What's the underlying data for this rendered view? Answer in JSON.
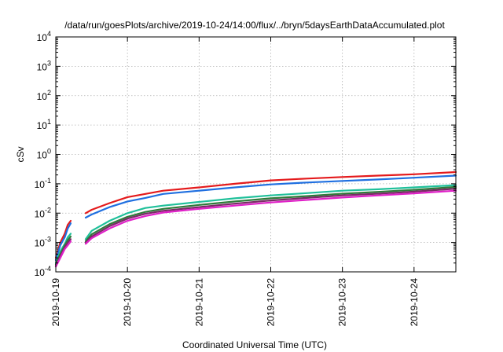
{
  "chart_data": {
    "type": "line",
    "title": "/data/run/goesPlots/archive/2019-10-24/14:00/flux/../bryn/5daysEarthDataAccumulated.plot",
    "xlabel": "Coordinated Universal Time (UTC)",
    "ylabel": "cSv",
    "y_scale": "log",
    "ylim": [
      0.0001,
      10000
    ],
    "y_ticks": [
      {
        "value": 0.0001,
        "mantissa": "10",
        "exp": "-4"
      },
      {
        "value": 0.001,
        "mantissa": "10",
        "exp": "-3"
      },
      {
        "value": 0.01,
        "mantissa": "10",
        "exp": "-2"
      },
      {
        "value": 0.1,
        "mantissa": "10",
        "exp": "-1"
      },
      {
        "value": 1,
        "mantissa": "10",
        "exp": "0"
      },
      {
        "value": 10,
        "mantissa": "10",
        "exp": "1"
      },
      {
        "value": 100,
        "mantissa": "10",
        "exp": "2"
      },
      {
        "value": 1000,
        "mantissa": "10",
        "exp": "3"
      },
      {
        "value": 10000,
        "mantissa": "10",
        "exp": "4"
      }
    ],
    "xlim": [
      "2019-10-19",
      "2019-10-24T14:00"
    ],
    "x_ticks": [
      "2019-10-19",
      "2019-10-20",
      "2019-10-21",
      "2019-10-22",
      "2019-10-23",
      "2019-10-24"
    ],
    "grid": true,
    "legend": "none",
    "series_colors": [
      "#e41a1c",
      "#1f6fe0",
      "#1fc09a",
      "#2f7a3a",
      "#7a2a66",
      "#e020c8"
    ],
    "series": [
      {
        "color": "#e41a1c",
        "x": [
          "2019-10-19T00:00",
          "2019-10-19T01:30",
          "2019-10-19T03:00",
          "2019-10-19T04:00",
          "2019-10-19T05:00",
          "2019-10-19T10:00",
          "2019-10-19T12:00",
          "2019-10-19T18:00",
          "2019-10-20T00:00",
          "2019-10-20T06:00",
          "2019-10-20T12:00",
          "2019-10-21T00:00",
          "2019-10-21T12:00",
          "2019-10-22T00:00",
          "2019-10-22T12:00",
          "2019-10-23T00:00",
          "2019-10-23T12:00",
          "2019-10-24T00:00",
          "2019-10-24T14:00"
        ],
        "y": [
          0.0003,
          0.001,
          0.002,
          0.004,
          0.0055,
          0.01,
          0.013,
          0.022,
          0.035,
          0.045,
          0.058,
          0.075,
          0.1,
          0.13,
          0.15,
          0.17,
          0.19,
          0.21,
          0.25
        ]
      },
      {
        "color": "#1f6fe0",
        "x": [
          "2019-10-19T00:00",
          "2019-10-19T01:30",
          "2019-10-19T03:00",
          "2019-10-19T04:00",
          "2019-10-19T05:00",
          "2019-10-19T10:00",
          "2019-10-19T12:00",
          "2019-10-19T18:00",
          "2019-10-20T00:00",
          "2019-10-20T06:00",
          "2019-10-20T12:00",
          "2019-10-21T00:00",
          "2019-10-21T12:00",
          "2019-10-22T00:00",
          "2019-10-22T12:00",
          "2019-10-23T00:00",
          "2019-10-23T12:00",
          "2019-10-24T00:00",
          "2019-10-24T14:00"
        ],
        "y": [
          0.00025,
          0.0008,
          0.0015,
          0.003,
          0.0045,
          0.007,
          0.009,
          0.016,
          0.025,
          0.033,
          0.045,
          0.058,
          0.075,
          0.095,
          0.11,
          0.125,
          0.14,
          0.16,
          0.19
        ]
      },
      {
        "color": "#1fc09a",
        "x": [
          "2019-10-19T00:00",
          "2019-10-19T01:30",
          "2019-10-19T03:00",
          "2019-10-19T04:00",
          "2019-10-19T05:00",
          "2019-10-19T10:00",
          "2019-10-19T12:00",
          "2019-10-19T18:00",
          "2019-10-20T00:00",
          "2019-10-20T06:00",
          "2019-10-20T12:00",
          "2019-10-21T00:00",
          "2019-10-21T12:00",
          "2019-10-22T00:00",
          "2019-10-22T12:00",
          "2019-10-23T00:00",
          "2019-10-23T12:00",
          "2019-10-24T00:00",
          "2019-10-24T14:00"
        ],
        "y": [
          0.0002,
          0.0005,
          0.0009,
          0.0015,
          0.002,
          0.0013,
          0.0025,
          0.0055,
          0.01,
          0.015,
          0.018,
          0.024,
          0.032,
          0.04,
          0.048,
          0.058,
          0.065,
          0.075,
          0.09
        ]
      },
      {
        "color": "#2f7a3a",
        "x": [
          "2019-10-19T00:00",
          "2019-10-19T01:30",
          "2019-10-19T03:00",
          "2019-10-19T04:00",
          "2019-10-19T05:00",
          "2019-10-19T10:00",
          "2019-10-19T12:00",
          "2019-10-19T18:00",
          "2019-10-20T00:00",
          "2019-10-20T06:00",
          "2019-10-20T12:00",
          "2019-10-21T00:00",
          "2019-10-21T12:00",
          "2019-10-22T00:00",
          "2019-10-22T12:00",
          "2019-10-23T00:00",
          "2019-10-23T12:00",
          "2019-10-24T00:00",
          "2019-10-24T14:00"
        ],
        "y": [
          0.00018,
          0.0004,
          0.0008,
          0.0012,
          0.0016,
          0.0011,
          0.0019,
          0.0042,
          0.0075,
          0.011,
          0.014,
          0.019,
          0.025,
          0.032,
          0.038,
          0.046,
          0.053,
          0.062,
          0.078
        ]
      },
      {
        "color": "#7a2a66",
        "x": [
          "2019-10-19T00:00",
          "2019-10-19T01:30",
          "2019-10-19T03:00",
          "2019-10-19T04:00",
          "2019-10-19T05:00",
          "2019-10-19T10:00",
          "2019-10-19T12:00",
          "2019-10-19T18:00",
          "2019-10-20T00:00",
          "2019-10-20T06:00",
          "2019-10-20T12:00",
          "2019-10-21T00:00",
          "2019-10-21T12:00",
          "2019-10-22T00:00",
          "2019-10-22T12:00",
          "2019-10-23T00:00",
          "2019-10-23T12:00",
          "2019-10-24T00:00",
          "2019-10-24T14:00"
        ],
        "y": [
          0.00016,
          0.00035,
          0.0007,
          0.001,
          0.0013,
          0.001,
          0.0016,
          0.0036,
          0.0065,
          0.0095,
          0.012,
          0.016,
          0.021,
          0.027,
          0.033,
          0.04,
          0.046,
          0.054,
          0.068
        ]
      },
      {
        "color": "#e020c8",
        "x": [
          "2019-10-19T00:00",
          "2019-10-19T01:30",
          "2019-10-19T03:00",
          "2019-10-19T04:00",
          "2019-10-19T05:00",
          "2019-10-19T10:00",
          "2019-10-19T12:00",
          "2019-10-19T18:00",
          "2019-10-20T00:00",
          "2019-10-20T06:00",
          "2019-10-20T12:00",
          "2019-10-21T00:00",
          "2019-10-21T12:00",
          "2019-10-22T00:00",
          "2019-10-22T12:00",
          "2019-10-23T00:00",
          "2019-10-23T12:00",
          "2019-10-24T00:00",
          "2019-10-24T14:00"
        ],
        "y": [
          0.00015,
          0.0003,
          0.0006,
          0.0008,
          0.0011,
          0.0009,
          0.0014,
          0.003,
          0.0055,
          0.008,
          0.0105,
          0.014,
          0.018,
          0.023,
          0.028,
          0.034,
          0.04,
          0.047,
          0.058
        ]
      }
    ]
  }
}
